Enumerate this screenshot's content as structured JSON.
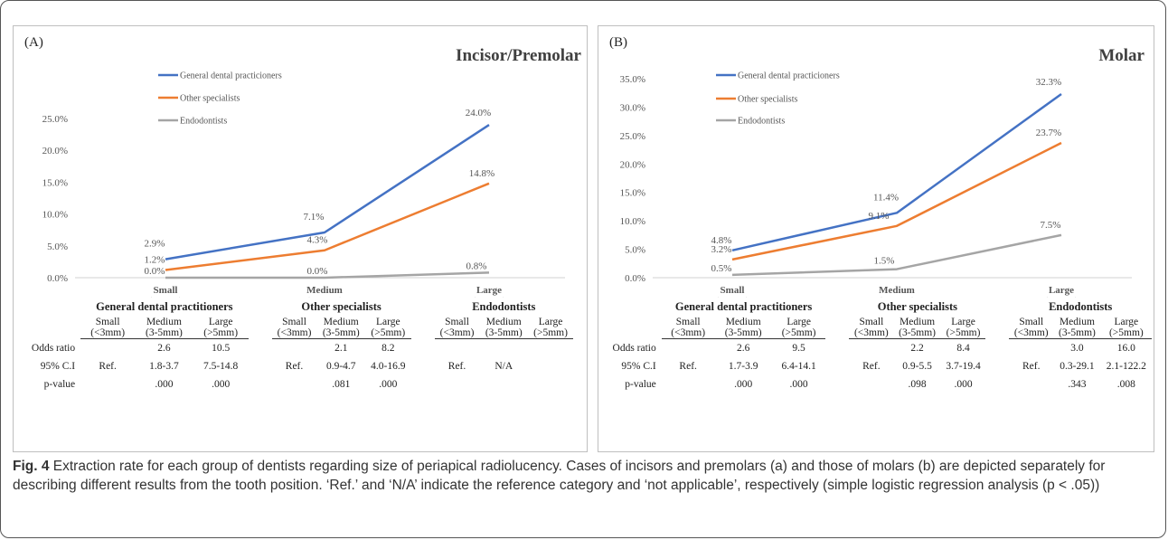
{
  "chart_data": [
    {
      "type": "line",
      "panel_label": "(A)",
      "title": "Incisor/Premolar",
      "categories": [
        [
          "Small",
          "(<3mm)"
        ],
        [
          "Medium",
          "(3-5mm)"
        ],
        [
          "Large",
          "(>5mm)"
        ]
      ],
      "ylim": [
        0,
        25
      ],
      "yticks": [
        "0.0%",
        "5.0%",
        "10.0%",
        "15.0%",
        "20.0%",
        "25.0%"
      ],
      "grid": false,
      "legend_position": "top-left",
      "series": [
        {
          "name": "General dental practicioners",
          "values": [
            2.9,
            7.1,
            24.0
          ],
          "labels": [
            "2.9%",
            "7.1%",
            "24.0%"
          ],
          "color": "#4472c4"
        },
        {
          "name": "Other specialists",
          "values": [
            1.2,
            4.3,
            14.8
          ],
          "labels": [
            "1.2%",
            "4.3%",
            "14.8%"
          ],
          "color": "#ed7d31"
        },
        {
          "name": "Endodontists",
          "values": [
            0.0,
            0.0,
            0.8
          ],
          "labels": [
            "0.0%",
            "0.0%",
            "0.8%"
          ],
          "color": "#a5a5a5"
        }
      ]
    },
    {
      "type": "line",
      "panel_label": "(B)",
      "title": "Molar",
      "categories": [
        [
          "Small",
          "(<3mm)"
        ],
        [
          "Medium",
          "(3-5mm)"
        ],
        [
          "Large",
          "(>5mm)"
        ]
      ],
      "ylim": [
        0,
        35
      ],
      "yticks": [
        "0.0%",
        "5.0%",
        "10.0%",
        "15.0%",
        "20.0%",
        "25.0%",
        "30.0%",
        "35.0%"
      ],
      "grid": false,
      "legend_position": "top-left",
      "series": [
        {
          "name": "General dental practicioners",
          "values": [
            4.8,
            11.4,
            32.3
          ],
          "labels": [
            "4.8%",
            "11.4%",
            "32.3%"
          ],
          "color": "#4472c4"
        },
        {
          "name": "Other specialists",
          "values": [
            3.2,
            9.1,
            23.7
          ],
          "labels": [
            "3.2%",
            "9.1%",
            "23.7%"
          ],
          "color": "#ed7d31"
        },
        {
          "name": "Endodontists",
          "values": [
            0.5,
            1.5,
            7.5
          ],
          "labels": [
            "0.5%",
            "1.5%",
            "7.5%"
          ],
          "color": "#a5a5a5"
        }
      ]
    }
  ],
  "tables": [
    {
      "groups": [
        {
          "name": "General dental practitioners",
          "cols": [
            [
              "Small",
              "(<3mm)"
            ],
            [
              "Medium",
              "(3-5mm)"
            ],
            [
              "Large",
              "(>5mm)"
            ]
          ]
        },
        {
          "name": "Other specialists",
          "cols": [
            [
              "Small",
              "(<3mm)"
            ],
            [
              "Medium",
              "(3-5mm)"
            ],
            [
              "Large",
              "(>5mm)"
            ]
          ]
        },
        {
          "name": "Endodontists",
          "cols": [
            [
              "Small",
              "(<3mm)"
            ],
            [
              "Medium",
              "(3-5mm)"
            ],
            [
              "Large",
              "(>5mm)"
            ]
          ]
        }
      ],
      "rows": [
        {
          "label": "Odds ratio",
          "cells": [
            "",
            "2.6",
            "10.5",
            "",
            "2.1",
            "8.2",
            "",
            "",
            ""
          ]
        },
        {
          "label": "95% C.I",
          "cells": [
            "Ref.",
            "1.8-3.7",
            "7.5-14.8",
            "Ref.",
            "0.9-4.7",
            "4.0-16.9",
            "Ref.",
            "N/A",
            ""
          ]
        },
        {
          "label": "p-value",
          "cells": [
            "",
            ".000",
            ".000",
            "",
            ".081",
            ".000",
            "",
            "",
            ""
          ]
        }
      ]
    },
    {
      "groups": [
        {
          "name": "General dental practitioners",
          "cols": [
            [
              "Small",
              "(<3mm)"
            ],
            [
              "Medium",
              "(3-5mm)"
            ],
            [
              "Large",
              "(>5mm)"
            ]
          ]
        },
        {
          "name": "Other specialists",
          "cols": [
            [
              "Small",
              "(<3mm)"
            ],
            [
              "Medium",
              "(3-5mm)"
            ],
            [
              "Large",
              "(>5mm)"
            ]
          ]
        },
        {
          "name": "Endodontists",
          "cols": [
            [
              "Small",
              "(<3mm)"
            ],
            [
              "Medium",
              "(3-5mm)"
            ],
            [
              "Large",
              "(>5mm)"
            ]
          ]
        }
      ],
      "rows": [
        {
          "label": "Odds ratio",
          "cells": [
            "",
            "2.6",
            "9.5",
            "",
            "2.2",
            "8.4",
            "",
            "3.0",
            "16.0"
          ]
        },
        {
          "label": "95% C.I",
          "cells": [
            "Ref.",
            "1.7-3.9",
            "6.4-14.1",
            "Ref.",
            "0.9-5.5",
            "3.7-19.4",
            "Ref.",
            "0.3-29.1",
            "2.1-122.2"
          ]
        },
        {
          "label": "p-value",
          "cells": [
            "",
            ".000",
            ".000",
            "",
            ".098",
            ".000",
            "",
            ".343",
            ".008"
          ]
        }
      ]
    }
  ],
  "caption": {
    "fig_label": "Fig. 4",
    "text": " Extraction rate for each group of dentists regarding size of periapical radiolucency. Cases of incisors and premolars (a) and those of molars (b) are depicted separately for describing different results from the tooth position. ‘Ref.’ and ‘N/A’ indicate the reference category and ‘not applicable’, respectively (simple logistic regression analysis (p < .05))"
  }
}
